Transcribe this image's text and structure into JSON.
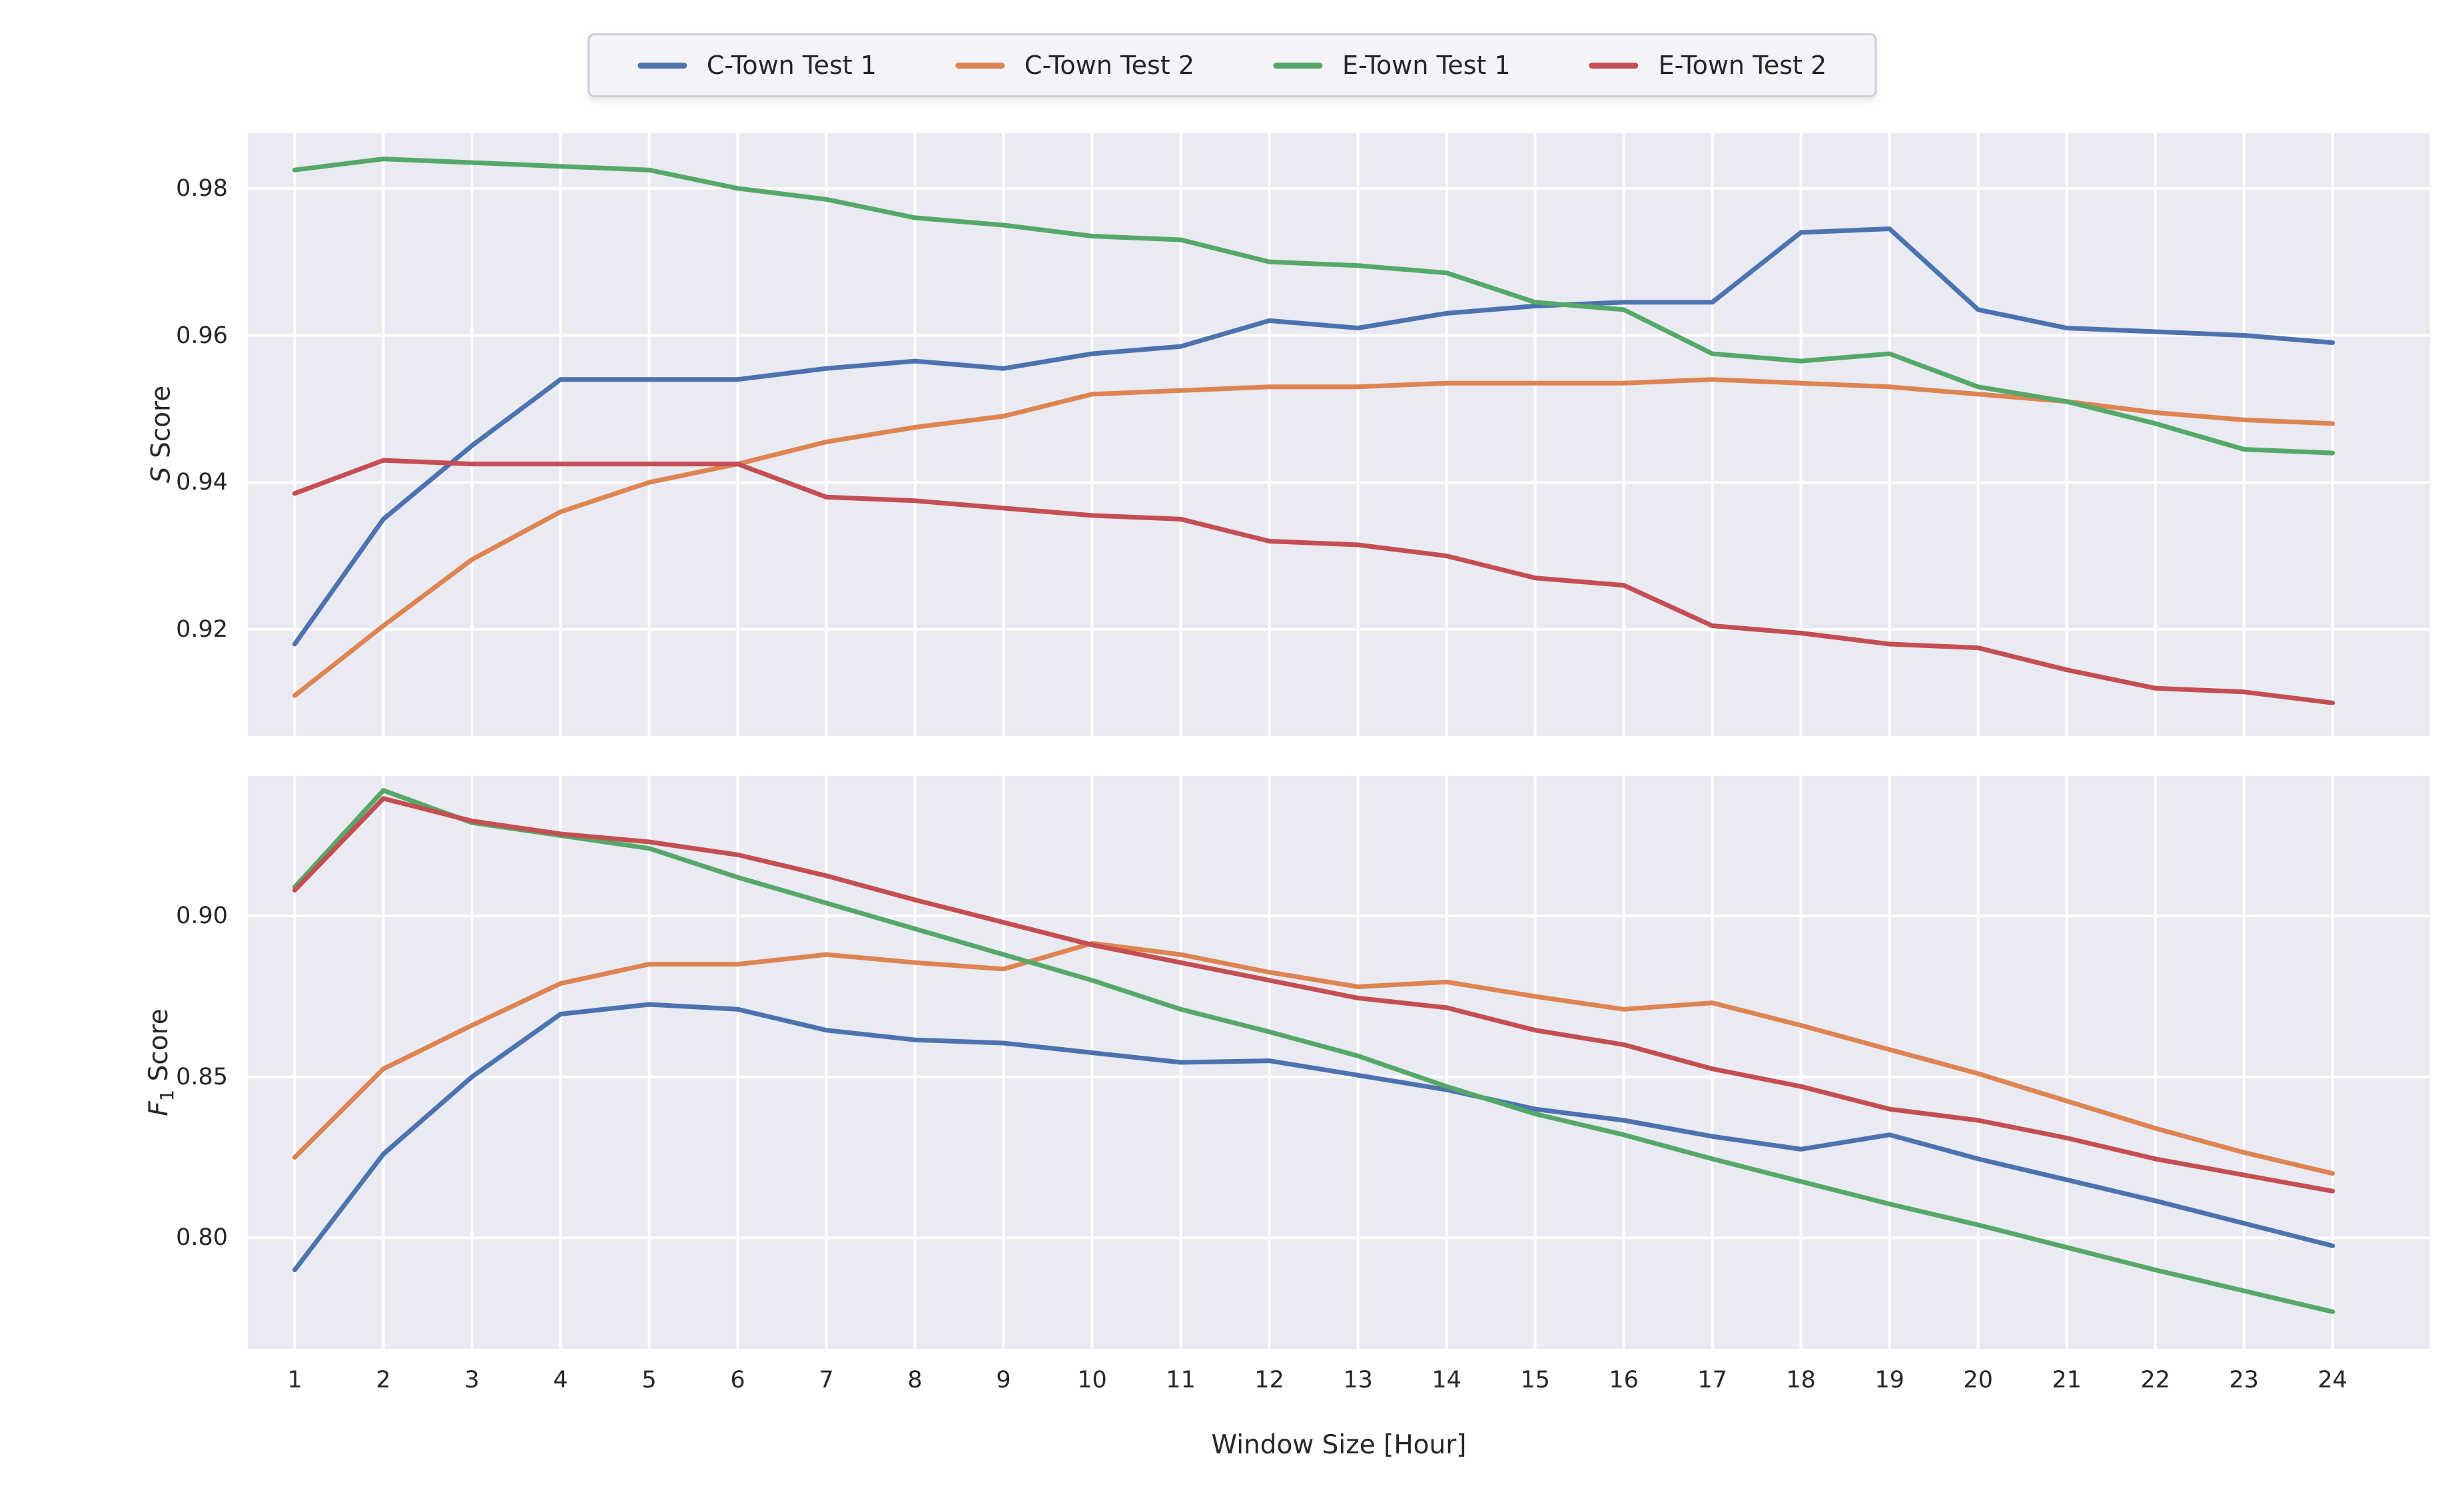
{
  "figure": {
    "legend": {
      "items": [
        {
          "label": "C-Town Test 1",
          "color": "#4c72b0"
        },
        {
          "label": "C-Town Test 2",
          "color": "#dd8452"
        },
        {
          "label": "E-Town Test 1",
          "color": "#55a868"
        },
        {
          "label": "E-Town Test 2",
          "color": "#c44e52"
        }
      ]
    },
    "axis_labels": {
      "top_italic": "S",
      "top_rest": " Score",
      "bottom_italic": "F",
      "bottom_sub": "1",
      "bottom_rest": " Score",
      "x": "Window Size [Hour]"
    },
    "colors": {
      "axes_background": "#eaeaf2",
      "gridline": "#ffffff",
      "text": "#262626"
    }
  },
  "chart_data": [
    {
      "type": "line",
      "panel": "top",
      "ylabel": "S Score",
      "xlabel": "",
      "x": [
        1,
        2,
        3,
        4,
        5,
        6,
        7,
        8,
        9,
        10,
        11,
        12,
        13,
        14,
        15,
        16,
        17,
        18,
        19,
        20,
        21,
        22,
        23,
        24
      ],
      "xlim": [
        0.47,
        25.1
      ],
      "ylim": [
        0.9055,
        0.9875
      ],
      "yticks": [
        0.92,
        0.94,
        0.96,
        0.98
      ],
      "ytick_labels": [
        "0.92",
        "0.94",
        "0.96",
        "0.98"
      ],
      "show_xtick_labels": false,
      "grid": true,
      "legend_position": "top-center-above-figure",
      "series": [
        {
          "name": "C-Town Test 1",
          "color": "#4c72b0",
          "values": [
            0.918,
            0.935,
            0.945,
            0.954,
            0.954,
            0.954,
            0.9555,
            0.9565,
            0.9555,
            0.9575,
            0.9585,
            0.962,
            0.961,
            0.963,
            0.964,
            0.9645,
            0.9645,
            0.974,
            0.9745,
            0.9635,
            0.961,
            0.9605,
            0.96,
            0.959
          ]
        },
        {
          "name": "C-Town Test 2",
          "color": "#dd8452",
          "values": [
            0.911,
            0.9205,
            0.9295,
            0.936,
            0.94,
            0.9425,
            0.9455,
            0.9475,
            0.949,
            0.952,
            0.9525,
            0.953,
            0.953,
            0.9535,
            0.9535,
            0.9535,
            0.954,
            0.9535,
            0.953,
            0.952,
            0.951,
            0.9495,
            0.9485,
            0.948
          ]
        },
        {
          "name": "E-Town Test 1",
          "color": "#55a868",
          "values": [
            0.9825,
            0.984,
            0.9835,
            0.983,
            0.9825,
            0.98,
            0.9785,
            0.976,
            0.975,
            0.9735,
            0.973,
            0.97,
            0.9695,
            0.9685,
            0.9645,
            0.9635,
            0.9575,
            0.9565,
            0.9575,
            0.953,
            0.951,
            0.948,
            0.9445,
            0.944
          ]
        },
        {
          "name": "E-Town Test 2",
          "color": "#c44e52",
          "values": [
            0.9385,
            0.943,
            0.9425,
            0.9425,
            0.9425,
            0.9425,
            0.938,
            0.9375,
            0.9365,
            0.9355,
            0.935,
            0.932,
            0.9315,
            0.93,
            0.927,
            0.926,
            0.9205,
            0.9195,
            0.918,
            0.9175,
            0.9145,
            0.912,
            0.9115,
            0.91
          ]
        }
      ]
    },
    {
      "type": "line",
      "panel": "bottom",
      "ylabel": "F1 Score",
      "xlabel": "Window Size [Hour]",
      "x": [
        1,
        2,
        3,
        4,
        5,
        6,
        7,
        8,
        9,
        10,
        11,
        12,
        13,
        14,
        15,
        16,
        17,
        18,
        19,
        20,
        21,
        22,
        23,
        24
      ],
      "xlim": [
        0.47,
        25.1
      ],
      "ylim": [
        0.7655,
        0.9435
      ],
      "yticks": [
        0.8,
        0.85,
        0.9
      ],
      "ytick_labels": [
        "0.80",
        "0.85",
        "0.90"
      ],
      "xtick_labels": [
        "1",
        "2",
        "3",
        "4",
        "5",
        "6",
        "7",
        "8",
        "9",
        "10",
        "11",
        "12",
        "13",
        "14",
        "15",
        "16",
        "17",
        "18",
        "19",
        "20",
        "21",
        "22",
        "23",
        "24"
      ],
      "show_xtick_labels": true,
      "grid": true,
      "series": [
        {
          "name": "C-Town Test 1",
          "color": "#4c72b0",
          "values": [
            0.79,
            0.826,
            0.85,
            0.8695,
            0.8725,
            0.871,
            0.8645,
            0.8615,
            0.8605,
            0.8575,
            0.8545,
            0.855,
            0.8505,
            0.846,
            0.84,
            0.8365,
            0.8315,
            0.8275,
            0.832,
            0.8245,
            0.818,
            0.8115,
            0.8045,
            0.7975
          ]
        },
        {
          "name": "C-Town Test 2",
          "color": "#dd8452",
          "values": [
            0.825,
            0.8525,
            0.866,
            0.879,
            0.885,
            0.885,
            0.888,
            0.8855,
            0.8835,
            0.8915,
            0.888,
            0.8825,
            0.878,
            0.8795,
            0.875,
            0.871,
            0.873,
            0.866,
            0.8585,
            0.851,
            0.8425,
            0.834,
            0.8265,
            0.82
          ]
        },
        {
          "name": "E-Town Test 1",
          "color": "#55a868",
          "values": [
            0.909,
            0.939,
            0.929,
            0.925,
            0.921,
            0.912,
            0.904,
            0.896,
            0.888,
            0.88,
            0.871,
            0.864,
            0.8565,
            0.847,
            0.8385,
            0.832,
            0.8245,
            0.8175,
            0.8105,
            0.804,
            0.797,
            0.79,
            0.7835,
            0.777
          ]
        },
        {
          "name": "E-Town Test 2",
          "color": "#c44e52",
          "values": [
            0.908,
            0.9365,
            0.9295,
            0.9255,
            0.923,
            0.919,
            0.9125,
            0.905,
            0.898,
            0.891,
            0.8855,
            0.88,
            0.8745,
            0.8715,
            0.8645,
            0.86,
            0.8525,
            0.847,
            0.84,
            0.8365,
            0.831,
            0.8245,
            0.8195,
            0.8145
          ]
        }
      ]
    }
  ]
}
